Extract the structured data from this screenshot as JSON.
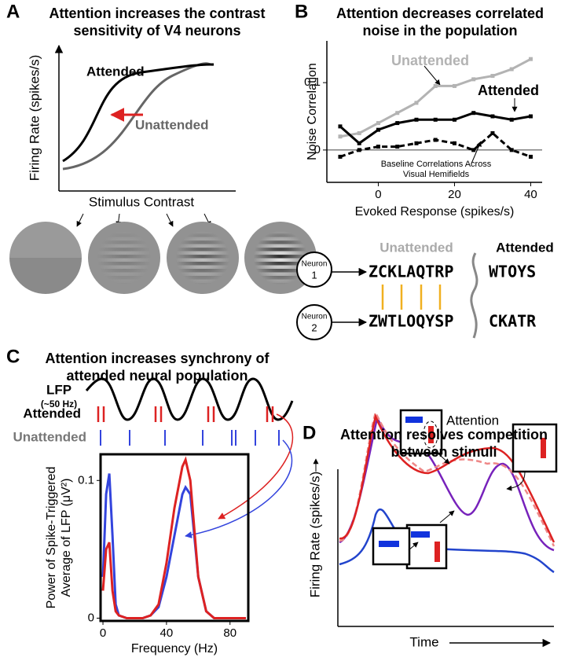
{
  "figure": {
    "panel_a": {
      "letter": "A",
      "title": "Attention increases the contrast sensitivity of V4 neurons",
      "ylabel": "Firing Rate (spikes/s)",
      "xlabel": "Stimulus Contrast",
      "attended": "Attended",
      "unattended": "Unattended"
    },
    "panel_b": {
      "letter": "B",
      "neuron_label": "Neuron",
      "neuron_1": "1",
      "neuron_2": "2",
      "unattended": "Unattended",
      "attended": "Attended",
      "neuron_1_unattended": "ZCKLAQTRP",
      "neuron_1_attended": "WTOYS",
      "neuron_2_unattended": "ZWTLOQYSP",
      "neuron_2_attended": "CKATR"
    },
    "panel_c": {
      "letter": "C",
      "title": "Attention increases synchrony of attended neural population",
      "lfp": "LFP",
      "lfp_band": "(~50 Hz)",
      "attended": "Attended",
      "unattended": "Unattended"
    },
    "panel_d": {
      "letter": "D",
      "title": "Attention resolves competition between stimuli",
      "attention": "Attention",
      "ylabel": "Firing Rate (spikes/s)",
      "xlabel": "Time"
    }
  },
  "chart_data": [
    {
      "type": "line",
      "title": "Attention decreases correlated noise in the population",
      "xlabel": "Evoked Response (spikes/s)",
      "ylabel": "Noise Correlation",
      "x": [
        -10,
        -5,
        0,
        5,
        10,
        15,
        20,
        25,
        30,
        35,
        40
      ],
      "series": [
        {
          "name": "Unattended",
          "color": "#b3b3b3",
          "line_style": "solid",
          "values": [
            0.02,
            0.025,
            0.04,
            0.055,
            0.07,
            0.095,
            0.095,
            0.105,
            0.11,
            0.12,
            0.135
          ]
        },
        {
          "name": "Attended",
          "color": "#000000",
          "line_style": "solid",
          "values": [
            0.035,
            0.01,
            0.03,
            0.04,
            0.045,
            0.045,
            0.045,
            0.055,
            0.05,
            0.045,
            0.05
          ]
        },
        {
          "name": "Baseline Correlations Across Visual Hemifields",
          "color": "#000000",
          "line_style": "dashed",
          "values": [
            -0.01,
            0.0,
            0.005,
            0.005,
            0.01,
            0.015,
            0.01,
            0.0,
            0.025,
            0.0,
            -0.01
          ]
        }
      ],
      "xlim": [
        -13.5,
        43
      ],
      "ylim": [
        -0.048,
        0.162
      ],
      "xticks": [
        0,
        20,
        40
      ],
      "yticks": [
        0,
        0.1
      ],
      "zero_line": true,
      "markers": true,
      "frame": false
    },
    {
      "type": "line",
      "xlabel": "Frequency (Hz)",
      "ylabel": "Power of Spike-Triggered Average of LFP (μV²)",
      "x": [
        0,
        2,
        4,
        6,
        8,
        10,
        15,
        20,
        25,
        30,
        35,
        40,
        45,
        50,
        52,
        55,
        60,
        65,
        70,
        75,
        80,
        85,
        90
      ],
      "series": [
        {
          "color": "#3344dd",
          "line_style": "solid",
          "values": [
            0.03,
            0.09,
            0.105,
            0.06,
            0.01,
            0.002,
            0,
            0,
            0,
            0.002,
            0.008,
            0.03,
            0.06,
            0.09,
            0.095,
            0.09,
            0.03,
            0.005,
            0,
            0,
            0,
            0,
            0
          ]
        },
        {
          "color": "#dd2222",
          "line_style": "solid",
          "values": [
            0.02,
            0.05,
            0.055,
            0.02,
            0.005,
            0.002,
            0,
            0,
            0,
            0.002,
            0.01,
            0.04,
            0.08,
            0.11,
            0.115,
            0.1,
            0.03,
            0.005,
            0,
            0,
            0,
            0,
            0
          ]
        }
      ],
      "xlim": [
        -1.5,
        91.5
      ],
      "ylim": [
        -0.002,
        0.119
      ],
      "xticks": [
        0,
        40,
        80
      ],
      "yticks": [
        0,
        0.1
      ],
      "zero_line": false,
      "markers": false,
      "frame": true
    }
  ]
}
